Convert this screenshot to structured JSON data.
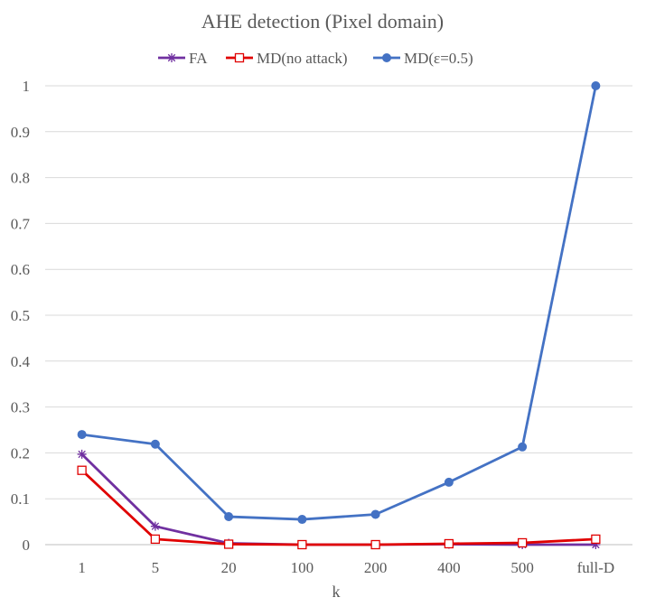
{
  "chart_data": {
    "type": "line",
    "title": "AHE detection (Pixel domain)",
    "xlabel": "k",
    "ylabel": "",
    "categories": [
      "1",
      "5",
      "20",
      "100",
      "200",
      "400",
      "500",
      "full-D"
    ],
    "ylim": [
      0,
      1.05
    ],
    "yticks": [
      "0",
      "0.1",
      "0.2",
      "0.3",
      "0.4",
      "0.5",
      "0.6",
      "0.7",
      "0.8",
      "0.9",
      "1"
    ],
    "grid": true,
    "legend_position": "top",
    "series": [
      {
        "name": "FA",
        "color": "#7030a0",
        "marker": "star",
        "values": [
          0.197,
          0.04,
          0.003,
          0.0,
          0.0,
          0.001,
          0.0,
          0.0
        ]
      },
      {
        "name": "MD(no attack)",
        "color": "#e00000",
        "marker": "open-square",
        "values": [
          0.162,
          0.012,
          0.001,
          0.0,
          0.0,
          0.002,
          0.004,
          0.012
        ]
      },
      {
        "name": "MD(ε=0.5)",
        "color": "#4472c4",
        "marker": "filled-circle",
        "values": [
          0.24,
          0.219,
          0.061,
          0.055,
          0.066,
          0.136,
          0.213,
          1.0
        ]
      }
    ]
  }
}
